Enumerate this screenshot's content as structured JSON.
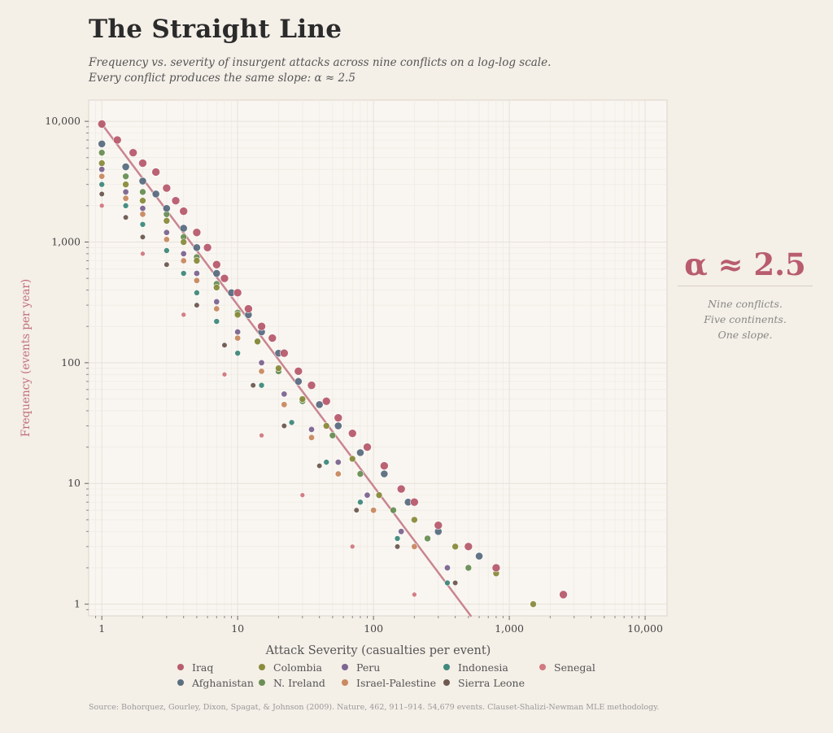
{
  "title": "The Straight Line",
  "subtitle": [
    "Frequency vs. severity of insurgent attacks across nine conflicts on a log-log scale.",
    "Every conflict produces the same slope: α ≈ 2.5"
  ],
  "annotation": {
    "headline": "α ≈ 2.5",
    "lines": [
      "Nine conflicts.",
      "Five continents.",
      "One slope."
    ]
  },
  "source": "Source: Bohorquez, Gourley, Dixon, Spagat, & Johnson (2009). Nature, 462, 911–914. 54,679 events. Clauset-Shalizi-Newman MLE methodology.",
  "chart_data": {
    "type": "scatter",
    "title": "The Straight Line",
    "xlabel": "Attack Severity (casualties per event)",
    "ylabel": "Frequency (events per year)",
    "xscale": "log",
    "yscale": "log",
    "xlim": [
      0.8,
      14500
    ],
    "ylim": [
      0.8,
      15000
    ],
    "xticks": [
      {
        "v": 1,
        "label": "1"
      },
      {
        "v": 10,
        "label": "10"
      },
      {
        "v": 100,
        "label": "100"
      },
      {
        "v": 1000,
        "label": "1,000"
      },
      {
        "v": 10000,
        "label": "10,000"
      }
    ],
    "yticks": [
      {
        "v": 1,
        "label": "1"
      },
      {
        "v": 10,
        "label": "10"
      },
      {
        "v": 100,
        "label": "100"
      },
      {
        "v": 1000,
        "label": "1,000"
      },
      {
        "v": 10000,
        "label": "10,000"
      }
    ],
    "grid": true,
    "legend_position": "bottom",
    "fit_line": {
      "intercept": 9500,
      "exponent": -1.5,
      "color": "#c98590"
    },
    "series": [
      {
        "name": "Iraq",
        "color": "#b85c6e",
        "size": 5,
        "points": [
          [
            1,
            9500
          ],
          [
            1.3,
            7000
          ],
          [
            1.7,
            5500
          ],
          [
            2,
            4500
          ],
          [
            2.5,
            3800
          ],
          [
            3,
            2800
          ],
          [
            3.5,
            2200
          ],
          [
            4,
            1800
          ],
          [
            5,
            1200
          ],
          [
            6,
            900
          ],
          [
            7,
            650
          ],
          [
            8,
            500
          ],
          [
            10,
            380
          ],
          [
            12,
            280
          ],
          [
            15,
            200
          ],
          [
            18,
            160
          ],
          [
            22,
            120
          ],
          [
            28,
            85
          ],
          [
            35,
            65
          ],
          [
            45,
            48
          ],
          [
            55,
            35
          ],
          [
            70,
            26
          ],
          [
            90,
            20
          ],
          [
            120,
            14
          ],
          [
            160,
            9
          ],
          [
            200,
            7
          ],
          [
            300,
            4.5
          ],
          [
            500,
            3
          ],
          [
            800,
            2
          ],
          [
            2500,
            1.2
          ]
        ]
      },
      {
        "name": "Afghanistan",
        "color": "#5a6e80",
        "size": 4.6,
        "points": [
          [
            1,
            6500
          ],
          [
            1.5,
            4200
          ],
          [
            2,
            3200
          ],
          [
            2.5,
            2500
          ],
          [
            3,
            1900
          ],
          [
            4,
            1300
          ],
          [
            5,
            900
          ],
          [
            7,
            550
          ],
          [
            9,
            380
          ],
          [
            12,
            250
          ],
          [
            15,
            180
          ],
          [
            20,
            120
          ],
          [
            28,
            70
          ],
          [
            40,
            45
          ],
          [
            55,
            30
          ],
          [
            80,
            18
          ],
          [
            120,
            12
          ],
          [
            180,
            7
          ],
          [
            300,
            4
          ],
          [
            600,
            2.5
          ]
        ]
      },
      {
        "name": "Colombia",
        "color": "#8a8c3c",
        "size": 4,
        "points": [
          [
            1,
            4500
          ],
          [
            1.5,
            3000
          ],
          [
            2,
            2200
          ],
          [
            3,
            1500
          ],
          [
            4,
            1000
          ],
          [
            5,
            700
          ],
          [
            7,
            420
          ],
          [
            10,
            250
          ],
          [
            14,
            150
          ],
          [
            20,
            90
          ],
          [
            30,
            50
          ],
          [
            45,
            30
          ],
          [
            70,
            16
          ],
          [
            110,
            8
          ],
          [
            200,
            5
          ],
          [
            400,
            3
          ],
          [
            800,
            1.8
          ],
          [
            1500,
            1
          ]
        ]
      },
      {
        "name": "N. Ireland",
        "color": "#6a8f55",
        "size": 4,
        "points": [
          [
            1,
            5500
          ],
          [
            1.5,
            3500
          ],
          [
            2,
            2600
          ],
          [
            3,
            1700
          ],
          [
            4,
            1100
          ],
          [
            5,
            750
          ],
          [
            7,
            450
          ],
          [
            10,
            260
          ],
          [
            14,
            150
          ],
          [
            20,
            85
          ],
          [
            30,
            48
          ],
          [
            50,
            25
          ],
          [
            80,
            12
          ],
          [
            140,
            6
          ],
          [
            250,
            3.5
          ],
          [
            500,
            2
          ]
        ]
      },
      {
        "name": "Peru",
        "color": "#7d6690",
        "size": 3.7,
        "points": [
          [
            1,
            4000
          ],
          [
            1.5,
            2600
          ],
          [
            2,
            1900
          ],
          [
            3,
            1200
          ],
          [
            4,
            800
          ],
          [
            5,
            550
          ],
          [
            7,
            320
          ],
          [
            10,
            180
          ],
          [
            15,
            100
          ],
          [
            22,
            55
          ],
          [
            35,
            28
          ],
          [
            55,
            15
          ],
          [
            90,
            8
          ],
          [
            160,
            4
          ],
          [
            350,
            2
          ]
        ]
      },
      {
        "name": "Israel-Palestine",
        "color": "#c98a60",
        "size": 3.7,
        "points": [
          [
            1,
            3500
          ],
          [
            1.5,
            2300
          ],
          [
            2,
            1700
          ],
          [
            3,
            1050
          ],
          [
            4,
            700
          ],
          [
            5,
            480
          ],
          [
            7,
            280
          ],
          [
            10,
            160
          ],
          [
            15,
            85
          ],
          [
            22,
            45
          ],
          [
            35,
            24
          ],
          [
            55,
            12
          ],
          [
            100,
            6
          ],
          [
            200,
            3
          ]
        ]
      },
      {
        "name": "Indonesia",
        "color": "#3f8a7c",
        "size": 3.5,
        "points": [
          [
            1,
            3000
          ],
          [
            1.5,
            2000
          ],
          [
            2,
            1400
          ],
          [
            3,
            850
          ],
          [
            4,
            550
          ],
          [
            5,
            380
          ],
          [
            7,
            220
          ],
          [
            10,
            120
          ],
          [
            15,
            65
          ],
          [
            25,
            32
          ],
          [
            45,
            15
          ],
          [
            80,
            7
          ],
          [
            150,
            3.5
          ],
          [
            350,
            1.5
          ]
        ]
      },
      {
        "name": "Sierra Leone",
        "color": "#6e5a50",
        "size": 3.3,
        "points": [
          [
            1,
            2500
          ],
          [
            1.5,
            1600
          ],
          [
            2,
            1100
          ],
          [
            3,
            650
          ],
          [
            5,
            300
          ],
          [
            8,
            140
          ],
          [
            13,
            65
          ],
          [
            22,
            30
          ],
          [
            40,
            14
          ],
          [
            75,
            6
          ],
          [
            150,
            3
          ],
          [
            400,
            1.5
          ]
        ]
      },
      {
        "name": "Senegal",
        "color": "#d07a80",
        "size": 3,
        "points": [
          [
            1,
            2000
          ],
          [
            2,
            800
          ],
          [
            4,
            250
          ],
          [
            8,
            80
          ],
          [
            15,
            25
          ],
          [
            30,
            8
          ],
          [
            70,
            3
          ],
          [
            200,
            1.2
          ]
        ]
      }
    ]
  }
}
